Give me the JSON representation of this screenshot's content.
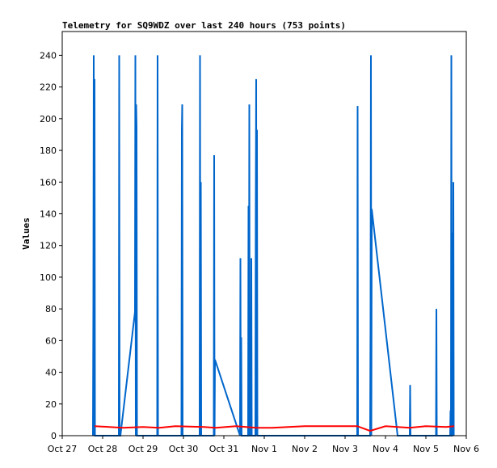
{
  "chart_data": {
    "type": "line",
    "title": "Telemetry for SQ9WDZ over last 240 hours (753 points)",
    "xlabel": "",
    "ylabel": "Values",
    "x_ticks": [
      "Oct 27",
      "Oct 28",
      "Oct 29",
      "Oct 30",
      "Oct 31",
      "Nov 1",
      "Nov 2",
      "Nov 3",
      "Nov 4",
      "Nov 5",
      "Nov 6"
    ],
    "xlim": [
      0,
      10
    ],
    "ylim": [
      0,
      255
    ],
    "y_ticks": [
      0,
      20,
      40,
      60,
      80,
      100,
      120,
      140,
      160,
      180,
      200,
      220,
      240
    ],
    "grid": false,
    "legend": "none",
    "x_unit": "days since Oct 27 00:00",
    "series": [
      {
        "color": "#0066cc",
        "x": [
          0.76,
          0.77,
          0.78,
          0.79,
          0.8,
          0.81,
          0.82,
          0.83,
          1.4,
          1.41,
          1.42,
          1.43,
          1.44,
          1.8,
          1.81,
          1.82,
          1.83,
          1.84,
          1.85,
          1.86,
          2.35,
          2.36,
          2.37,
          2.38,
          2.39,
          2.95,
          2.96,
          2.97,
          2.98,
          3.4,
          3.41,
          3.42,
          3.43,
          3.44,
          3.75,
          3.76,
          3.77,
          3.78,
          4.4,
          4.41,
          4.42,
          4.43,
          4.44,
          4.45,
          4.6,
          4.61,
          4.62,
          4.63,
          4.64,
          4.65,
          4.66,
          4.67,
          4.68,
          4.69,
          4.7,
          4.78,
          4.79,
          4.8,
          4.81,
          4.82,
          4.83,
          4.84,
          4.85,
          4.86,
          7.3,
          7.31,
          7.32,
          7.33,
          7.62,
          7.63,
          7.64,
          7.65,
          7.66,
          8.3,
          8.31,
          8.6,
          8.61,
          8.62,
          8.63,
          9.25,
          9.26,
          9.27,
          9.28,
          9.6,
          9.61,
          9.62,
          9.63,
          9.64,
          9.65,
          9.66,
          9.67,
          9.68,
          9.69
        ],
        "y": [
          0,
          80,
          240,
          0,
          225,
          0,
          0,
          0,
          0,
          240,
          0,
          0,
          0,
          78,
          240,
          0,
          209,
          195,
          0,
          0,
          0,
          240,
          0,
          0,
          0,
          0,
          193,
          209,
          0,
          0,
          240,
          0,
          160,
          0,
          0,
          177,
          0,
          48,
          0,
          112,
          0,
          62,
          0,
          0,
          0,
          145,
          0,
          209,
          0,
          0,
          40,
          0,
          112,
          0,
          0,
          0,
          145,
          225,
          0,
          193,
          0,
          0,
          0,
          0,
          0,
          208,
          0,
          0,
          0,
          72,
          240,
          0,
          143,
          0,
          0,
          0,
          32,
          0,
          0,
          0,
          80,
          0,
          0,
          0,
          16,
          0,
          240,
          0,
          0,
          128,
          0,
          160,
          0
        ]
      },
      {
        "color": "#ff0000",
        "x": [
          0.8,
          1.5,
          2.0,
          2.4,
          2.8,
          3.5,
          3.8,
          4.3,
          4.8,
          5.2,
          6.0,
          7.3,
          7.62,
          8.0,
          8.3,
          8.6,
          9.0,
          9.5,
          9.7
        ],
        "y": [
          6,
          5,
          5.5,
          5,
          6,
          5.5,
          5,
          6,
          5,
          5,
          6,
          6,
          3,
          6,
          5.5,
          5,
          6,
          5.5,
          6
        ]
      }
    ]
  }
}
